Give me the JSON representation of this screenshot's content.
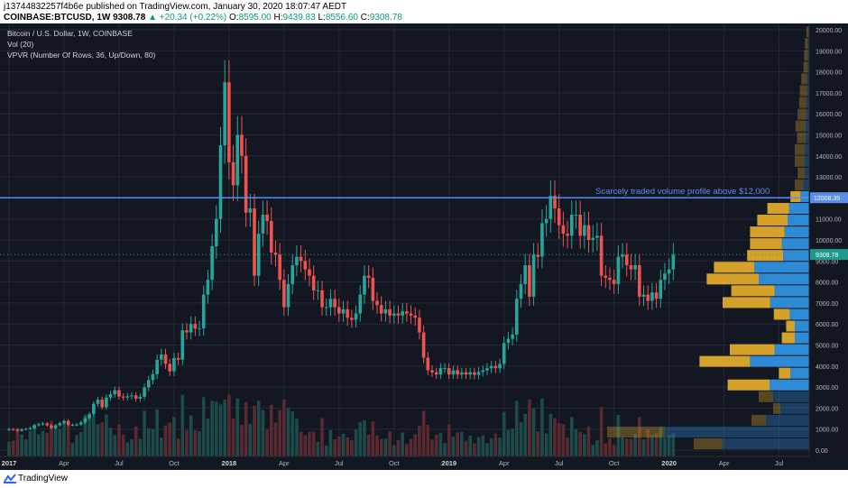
{
  "header": {
    "publisher_line": "j13744832257f4b6e published on TradingView.com, January 30, 2020 18:07:47 AEDT",
    "symbol": "COINBASE:BTCUSD, 1W",
    "last": "9308.78",
    "change": "+20.34 (+0.22%)",
    "o_label": "O:",
    "o_value": "8595.00",
    "h_label": "H:",
    "h_value": "9439.83",
    "l_label": "L:",
    "l_value": "8556.60",
    "c_label": "C:",
    "c_value": "9308.78"
  },
  "legend": {
    "title": "Bitcoin / U.S. Dollar, 1W, COINBASE",
    "vol": "Vol (20)",
    "vpvr": "VPVR (Number Of Rows, 36, Up/Down, 80)"
  },
  "footer": {
    "brand": "TradingView"
  },
  "colors": {
    "up": "#26a69a",
    "down": "#ef5350",
    "line": "#5b8def",
    "vp_up": "#2f8ad6",
    "vp_down": "#d4a12a",
    "price_label": "#1e9a8c"
  },
  "chart_data": {
    "type": "candlestick",
    "annotation": "Scarcely traded volume profile above $12,000",
    "hline": {
      "value": 12008.39,
      "label": "12008.39"
    },
    "last_price": {
      "value": 9308.78,
      "label": "9308.78"
    },
    "y_axis": {
      "ylim": [
        -300,
        20300
      ],
      "ticks": [
        "0.00",
        "1000.00",
        "2000.00",
        "3000.00",
        "4000.00",
        "5000.00",
        "6000.00",
        "7000.00",
        "8000.00",
        "9000.00",
        "10000.00",
        "11000.00",
        "12000.00",
        "13000.00",
        "14000.00",
        "15000.00",
        "16000.00",
        "17000.00",
        "18000.00",
        "19000.00",
        "20000.00"
      ],
      "tick_values": [
        0,
        1000,
        2000,
        3000,
        4000,
        5000,
        6000,
        7000,
        8000,
        9000,
        10000,
        11000,
        12000,
        13000,
        14000,
        15000,
        16000,
        17000,
        18000,
        19000,
        20000
      ]
    },
    "x_axis": {
      "ticks": [
        "2017",
        "Apr",
        "Jul",
        "Oct",
        "2018",
        "Apr",
        "Jul",
        "Oct",
        "2019",
        "Apr",
        "Jul",
        "Oct",
        "2020",
        "Apr",
        "Jul"
      ],
      "tick_weeks": [
        0,
        13,
        26,
        39,
        52,
        65,
        78,
        91,
        104,
        117,
        130,
        143,
        156,
        169,
        182
      ]
    },
    "close": [
      1000,
      980,
      920,
      990,
      1010,
      1050,
      1180,
      1230,
      1270,
      1180,
      1050,
      1180,
      1280,
      1390,
      1200,
      1200,
      1220,
      1320,
      1520,
      1710,
      2200,
      2400,
      2040,
      2500,
      2660,
      2850,
      2550,
      2500,
      2560,
      2600,
      2450,
      2540,
      2980,
      3330,
      3610,
      4300,
      4550,
      4100,
      3750,
      4380,
      4300,
      5700,
      5600,
      6000,
      5780,
      5800,
      7400,
      8100,
      9700,
      11000,
      14500,
      17500,
      13700,
      12600,
      15000,
      14000,
      11300,
      11500,
      8300,
      10300,
      11200,
      10900,
      9400,
      9300,
      8100,
      6800,
      7900,
      8800,
      9200,
      9000,
      8600,
      8300,
      7600,
      7600,
      6800,
      6800,
      7200,
      6800,
      6500,
      6700,
      6300,
      6200,
      6500,
      7400,
      8300,
      8200,
      7100,
      6900,
      6500,
      6700,
      6400,
      6500,
      6400,
      6600,
      6500,
      6400,
      6300,
      5600,
      4400,
      3800,
      3700,
      3600,
      3900,
      3900,
      3600,
      3800,
      3600,
      3700,
      3600,
      3700,
      3580,
      3720,
      3800,
      3900,
      4000,
      3900,
      4100,
      5100,
      5300,
      5500,
      7200,
      7900,
      8800,
      7300,
      9300,
      9200,
      10800,
      11000,
      12100,
      11500,
      10700,
      10300,
      10200,
      11200,
      11200,
      10200,
      10700,
      10000,
      10100,
      10200,
      8300,
      8200,
      8100,
      7900,
      9200,
      9300,
      8800,
      8600,
      8800,
      7300,
      7400,
      7100,
      7500,
      7200,
      8100,
      8400,
      8600,
      9300
    ],
    "open": [
      960,
      1000,
      980,
      920,
      990,
      1010,
      1050,
      1180,
      1230,
      1270,
      1180,
      1050,
      1180,
      1280,
      1390,
      1200,
      1200,
      1220,
      1320,
      1520,
      1710,
      2200,
      2400,
      2040,
      2500,
      2660,
      2850,
      2550,
      2500,
      2560,
      2600,
      2450,
      2540,
      2980,
      3330,
      3610,
      4300,
      4550,
      4100,
      3750,
      4380,
      4300,
      5700,
      5600,
      6000,
      5780,
      5800,
      7400,
      8100,
      9700,
      11000,
      14500,
      17500,
      13700,
      12600,
      15000,
      14000,
      11300,
      11500,
      8300,
      10300,
      11200,
      10900,
      9400,
      9300,
      8100,
      6800,
      7900,
      8800,
      9200,
      9000,
      8600,
      8300,
      7600,
      7600,
      6800,
      6800,
      7200,
      6800,
      6500,
      6700,
      6300,
      6200,
      6500,
      7400,
      8300,
      8200,
      7100,
      6900,
      6500,
      6700,
      6400,
      6500,
      6400,
      6600,
      6500,
      6400,
      6300,
      5600,
      4400,
      3800,
      3700,
      3600,
      3900,
      3900,
      3600,
      3800,
      3600,
      3700,
      3600,
      3700,
      3580,
      3720,
      3800,
      3900,
      4000,
      3900,
      4100,
      5100,
      5300,
      5500,
      7200,
      7900,
      8800,
      7300,
      9300,
      9200,
      10800,
      11000,
      12100,
      11500,
      10700,
      10300,
      10200,
      11200,
      11200,
      10200,
      10700,
      10000,
      10100,
      10200,
      8300,
      8200,
      8100,
      7900,
      9200,
      9300,
      8800,
      8600,
      8800,
      7300,
      7400,
      7100,
      7500,
      7200,
      8100,
      8400,
      8600
    ],
    "volume_profile": {
      "row_height": 560,
      "rows": [
        {
          "low": 0,
          "up": 120,
          "down": 40,
          "faded": true
        },
        {
          "low": 560,
          "up": 200,
          "down": 80,
          "faded": true
        },
        {
          "low": 1120,
          "up": 60,
          "down": 20,
          "faded": true
        },
        {
          "low": 1680,
          "up": 40,
          "down": 10,
          "faded": true
        },
        {
          "low": 2240,
          "up": 50,
          "down": 20,
          "faded": true
        },
        {
          "low": 2800,
          "up": 55,
          "down": 58
        },
        {
          "low": 3360,
          "up": 26,
          "down": 16
        },
        {
          "low": 3920,
          "up": 82,
          "down": 70
        },
        {
          "low": 4480,
          "up": 48,
          "down": 62
        },
        {
          "low": 5040,
          "up": 20,
          "down": 18
        },
        {
          "low": 5600,
          "up": 20,
          "down": 12
        },
        {
          "low": 6160,
          "up": 27,
          "down": 22
        },
        {
          "low": 6720,
          "up": 54,
          "down": 66
        },
        {
          "low": 7280,
          "up": 48,
          "down": 60
        },
        {
          "low": 7840,
          "up": 70,
          "down": 72
        },
        {
          "low": 8400,
          "up": 76,
          "down": 56
        },
        {
          "low": 8960,
          "up": 36,
          "down": 50
        },
        {
          "low": 9520,
          "up": 38,
          "down": 44
        },
        {
          "low": 10080,
          "up": 34,
          "down": 48
        },
        {
          "low": 10640,
          "up": 30,
          "down": 42
        },
        {
          "low": 11200,
          "up": 28,
          "down": 30
        },
        {
          "low": 11760,
          "up": 12,
          "down": 14
        },
        {
          "low": 12320,
          "up": 8,
          "down": 12,
          "faded": true
        },
        {
          "low": 12880,
          "up": 6,
          "down": 10,
          "faded": true
        },
        {
          "low": 13440,
          "up": 6,
          "down": 14,
          "faded": true
        },
        {
          "low": 14000,
          "up": 6,
          "down": 14,
          "faded": true
        },
        {
          "low": 14560,
          "up": 5,
          "down": 12,
          "faded": true
        },
        {
          "low": 15120,
          "up": 5,
          "down": 14,
          "faded": true
        },
        {
          "low": 15680,
          "up": 4,
          "down": 12,
          "faded": true
        },
        {
          "low": 16240,
          "up": 4,
          "down": 10,
          "faded": true
        },
        {
          "low": 16800,
          "up": 3,
          "down": 10,
          "faded": true
        },
        {
          "low": 17360,
          "up": 3,
          "down": 8,
          "faded": true
        },
        {
          "low": 17920,
          "up": 2,
          "down": 6,
          "faded": true
        },
        {
          "low": 18480,
          "up": 2,
          "down": 5,
          "faded": true
        },
        {
          "low": 19040,
          "up": 2,
          "down": 4,
          "faded": true
        },
        {
          "low": 19600,
          "up": 1,
          "down": 3,
          "faded": true
        }
      ]
    }
  }
}
